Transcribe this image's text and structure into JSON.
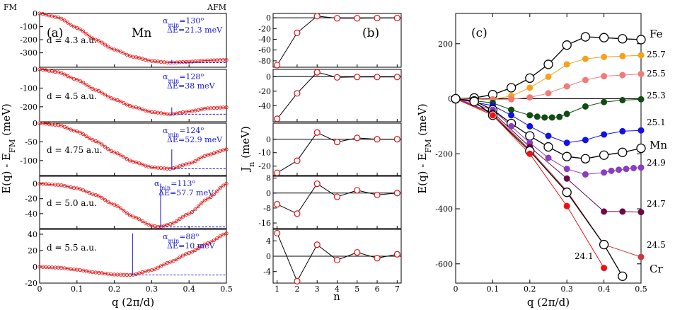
{
  "chart_data": [
    {
      "type": "line",
      "panel": "(a)",
      "element": "Mn",
      "top_left_label": "FM",
      "top_right_label": "AFM",
      "xlabel": "q (2π/d)",
      "ylabel_main": "E(q) - E",
      "ylabel_sub": "FM",
      "ylabel_unit": " (meV)",
      "xlim": [
        0,
        0.5
      ],
      "xticks": [
        "0",
        "0.1",
        "0.2",
        "0.3",
        "0.4",
        "0.5"
      ],
      "subplots": [
        {
          "d_label": "d = 4.3 a.u.",
          "ylim": [
            -410,
            0
          ],
          "yticks": [
            0,
            -100,
            -200,
            -300
          ],
          "ytick_labels": [
            "0",
            "-100",
            "-200",
            "-300"
          ],
          "zero_line": false,
          "points": [
            [
              0,
              0
            ],
            [
              0.05,
              -30
            ],
            [
              0.1,
              -110
            ],
            [
              0.15,
              -200
            ],
            [
              0.2,
              -275
            ],
            [
              0.25,
              -330
            ],
            [
              0.3,
              -362
            ],
            [
              0.35,
              -375
            ],
            [
              0.4,
              -368
            ],
            [
              0.45,
              -358
            ],
            [
              0.5,
              -354
            ]
          ],
          "alpha": "α",
          "alpha_sub": "min",
          "alpha_val": "=130",
          "alpha_sup": "o",
          "delta_e": "ΔE=21.3 meV"
        },
        {
          "d_label": "d = 4.5 a.u.",
          "ylim": [
            -280,
            0
          ],
          "yticks": [
            0,
            -100,
            -200
          ],
          "ytick_labels": [
            "0",
            "-100",
            "-200"
          ],
          "zero_line": false,
          "points": [
            [
              0,
              0
            ],
            [
              0.05,
              -15
            ],
            [
              0.1,
              -55
            ],
            [
              0.15,
              -110
            ],
            [
              0.2,
              -160
            ],
            [
              0.25,
              -200
            ],
            [
              0.3,
              -228
            ],
            [
              0.35,
              -240
            ],
            [
              0.4,
              -225
            ],
            [
              0.45,
              -208
            ],
            [
              0.5,
              -203
            ]
          ],
          "alpha": "α",
          "alpha_sub": "min",
          "alpha_val": "=128",
          "alpha_sup": "o",
          "delta_e": "ΔE=38 meV"
        },
        {
          "d_label": "d = 4.75 a.u.",
          "ylim": [
            -140,
            0
          ],
          "yticks": [
            0,
            -50,
            -100
          ],
          "ytick_labels": [
            "0",
            "-50",
            "-100"
          ],
          "zero_line": false,
          "points": [
            [
              0,
              0
            ],
            [
              0.05,
              -5
            ],
            [
              0.1,
              -22
            ],
            [
              0.15,
              -48
            ],
            [
              0.2,
              -78
            ],
            [
              0.25,
              -103
            ],
            [
              0.3,
              -118
            ],
            [
              0.35,
              -122
            ],
            [
              0.4,
              -108
            ],
            [
              0.45,
              -85
            ],
            [
              0.5,
              -70
            ]
          ],
          "alpha": "α",
          "alpha_sub": "min",
          "alpha_val": "=124",
          "alpha_sup": "o",
          "delta_e": "ΔE=52.9 meV"
        },
        {
          "d_label": "d = 5.0 a.u.",
          "ylim": [
            -60,
            10
          ],
          "yticks": [
            0,
            -20,
            -40
          ],
          "ytick_labels": [
            "0",
            "-20",
            "-40"
          ],
          "zero_line": false,
          "points": [
            [
              0,
              0
            ],
            [
              0.05,
              -1.5
            ],
            [
              0.1,
              -6
            ],
            [
              0.15,
              -15
            ],
            [
              0.2,
              -28
            ],
            [
              0.25,
              -44
            ],
            [
              0.3,
              -56
            ],
            [
              0.32,
              -57.7
            ],
            [
              0.35,
              -54
            ],
            [
              0.4,
              -40
            ],
            [
              0.45,
              -20
            ],
            [
              0.5,
              0
            ]
          ],
          "alpha": "α",
          "alpha_sub": "min",
          "alpha_val": "=113",
          "alpha_sup": "o",
          "delta_e": "ΔE=57.7 meV"
        },
        {
          "d_label": "d = 5.5 a.u.",
          "ylim": [
            -20,
            46
          ],
          "yticks": [
            40,
            20,
            0,
            -20
          ],
          "ytick_labels": [
            "40",
            "20",
            "0",
            "-20"
          ],
          "zero_line": false,
          "points": [
            [
              0,
              0
            ],
            [
              0.05,
              -1
            ],
            [
              0.1,
              -3.5
            ],
            [
              0.15,
              -7
            ],
            [
              0.2,
              -9.5
            ],
            [
              0.245,
              -10
            ],
            [
              0.3,
              -4
            ],
            [
              0.35,
              6
            ],
            [
              0.4,
              17
            ],
            [
              0.45,
              29
            ],
            [
              0.5,
              41
            ]
          ],
          "alpha": "α",
          "alpha_sub": "min",
          "alpha_val": "=88",
          "alpha_sup": "o",
          "delta_e": "ΔE=10 meV"
        }
      ]
    },
    {
      "type": "line",
      "panel": "(b)",
      "xlabel": "n",
      "ylabel_main": "J",
      "ylabel_sub": "n",
      "ylabel_unit": " (meV)",
      "xlim": [
        0.8,
        7.2
      ],
      "x": [
        1,
        2,
        3,
        4,
        5,
        6,
        7
      ],
      "xticks": [
        "1",
        "2",
        "3",
        "4",
        "5",
        "6",
        "7"
      ],
      "subplots": [
        {
          "ylim": [
            -92,
            8
          ],
          "yticks": [
            0,
            -20,
            -40,
            -60,
            -80
          ],
          "ytick_labels": [
            "0",
            "-20",
            "-40",
            "-60",
            "-80"
          ],
          "values": [
            -88,
            -28,
            3,
            -1,
            -1,
            -0.5,
            -0.5
          ]
        },
        {
          "ylim": [
            -62,
            10
          ],
          "yticks": [
            0,
            -20,
            -40
          ],
          "ytick_labels": [
            "0",
            "-20",
            "-40"
          ],
          "values": [
            -58,
            -23,
            6,
            -1,
            -0.5,
            -0.5,
            -0.5
          ]
        },
        {
          "ylim": [
            -27,
            12
          ],
          "yticks": [
            0,
            -10,
            -20
          ],
          "ytick_labels": [
            "0",
            "-10",
            "-20"
          ],
          "values": [
            -25,
            -16,
            5,
            -2,
            1,
            0,
            0
          ]
        },
        {
          "ylim": [
            -19,
            9
          ],
          "yticks": [
            8,
            0,
            -8,
            -16
          ],
          "ytick_labels": [
            "8",
            "0",
            "-8",
            "-16"
          ],
          "values": [
            -6,
            -11,
            5,
            -2,
            1.5,
            -1,
            0
          ]
        },
        {
          "ylim": [
            -7,
            7
          ],
          "yticks": [
            4,
            0,
            -4
          ],
          "ytick_labels": [
            "4",
            "0",
            "-4"
          ],
          "values": [
            6,
            -6.5,
            3,
            -1,
            1,
            -0.5,
            0.5
          ]
        }
      ]
    },
    {
      "type": "line",
      "panel": "(c)",
      "xlabel": "q (2π/d)",
      "ylabel_main": "E(q) - E",
      "ylabel_sub": "FM",
      "ylabel_unit": " (meV)",
      "xlim": [
        0,
        0.5
      ],
      "ylim": [
        -670,
        310
      ],
      "xticks": [
        "0",
        "0.1",
        "0.2",
        "0.3",
        "0.4",
        "0.5"
      ],
      "yticks": [
        200,
        0,
        -200,
        -400,
        -600
      ],
      "ytick_labels": [
        "200",
        "0",
        "-200",
        "-400",
        "-600"
      ],
      "series": [
        {
          "name": "Fe",
          "color": "#000000",
          "open": true,
          "x": [
            0,
            0.05,
            0.1,
            0.15,
            0.2,
            0.25,
            0.3,
            0.35,
            0.4,
            0.45,
            0.5
          ],
          "values": [
            0,
            3,
            15,
            40,
            75,
            125,
            195,
            225,
            222,
            218,
            215
          ]
        },
        {
          "name": "25.7",
          "color": "#f5a21b",
          "open": false,
          "x": [
            0.1,
            0.15,
            0.2,
            0.25,
            0.3,
            0.35,
            0.4,
            0.45,
            0.5
          ],
          "values": [
            -2,
            10,
            40,
            80,
            125,
            145,
            152,
            155,
            158
          ]
        },
        {
          "name": "25.5",
          "color": "#f07b7b",
          "open": false,
          "x": [
            0.05,
            0.1,
            0.15,
            0.2,
            0.25,
            0.3,
            0.35,
            0.4,
            0.45,
            0.5
          ],
          "values": [
            -2,
            -3,
            -2,
            5,
            20,
            45,
            68,
            82,
            86,
            90
          ]
        },
        {
          "name": "25.3",
          "color": "#0f4d12",
          "open": false,
          "x": [
            0.1,
            0.15,
            0.2,
            0.22,
            0.24,
            0.26,
            0.28,
            0.3,
            0.35,
            0.4,
            0.45,
            0.5
          ],
          "values": [
            -15,
            -40,
            -60,
            -65,
            -68,
            -68,
            -66,
            -55,
            -28,
            -12,
            -5,
            -2
          ]
        },
        {
          "name": "25.1",
          "color": "#1010e8",
          "open": false,
          "x": [
            0.1,
            0.15,
            0.2,
            0.25,
            0.3,
            0.35,
            0.4,
            0.45,
            0.5
          ],
          "values": [
            -25,
            -60,
            -100,
            -135,
            -160,
            -150,
            -130,
            -118,
            -115
          ]
        },
        {
          "name": "Mn",
          "color": "#000000",
          "open": true,
          "x": [
            0,
            0.05,
            0.1,
            0.15,
            0.2,
            0.25,
            0.3,
            0.35,
            0.4,
            0.45,
            0.5
          ],
          "values": [
            0,
            -8,
            -40,
            -90,
            -135,
            -175,
            -210,
            -218,
            -205,
            -195,
            -180
          ]
        },
        {
          "name": "24.9",
          "color": "#8a3dbf",
          "open": false,
          "x": [
            0.1,
            0.15,
            0.2,
            0.25,
            0.3,
            0.35,
            0.4,
            0.42,
            0.44,
            0.46,
            0.48,
            0.5
          ],
          "values": [
            -40,
            -100,
            -160,
            -215,
            -255,
            -275,
            -268,
            -262,
            -258,
            -255,
            -252,
            -250
          ]
        },
        {
          "name": "24.7",
          "color": "#6b0a4a",
          "open": false,
          "x": [
            0.1,
            0.2,
            0.3,
            0.4,
            0.45,
            0.5
          ],
          "values": [
            -50,
            -175,
            -290,
            -410,
            -410,
            -412
          ]
        },
        {
          "name": "24.5",
          "color": "#c83a3a",
          "open": false,
          "x": [
            0.1,
            0.2,
            0.3,
            0.4,
            0.5
          ],
          "values": [
            -55,
            -185,
            -335,
            -530,
            -575
          ]
        },
        {
          "name": "Cr",
          "color": "#000000",
          "open": true,
          "x": [
            0,
            0.05,
            0.1,
            0.2,
            0.3,
            0.4,
            0.45
          ],
          "values": [
            0,
            -10,
            -60,
            -190,
            -340,
            -530,
            -645
          ]
        },
        {
          "name": "24.1",
          "color": "#ee1010",
          "open": false,
          "x": [
            0.1,
            0.2,
            0.3,
            0.4
          ],
          "values": [
            -60,
            -200,
            -390,
            -615
          ]
        }
      ],
      "series_labels": {
        "Fe": "Fe",
        "25.7": "25.7",
        "25.5": "25.5",
        "25.3": "25.3",
        "25.1": "25.1",
        "Mn": "Mn",
        "24.9": "24.9",
        "24.7": "24.7",
        "24.5": "24.5",
        "24.1": "24.1",
        "Cr": "Cr"
      }
    }
  ]
}
